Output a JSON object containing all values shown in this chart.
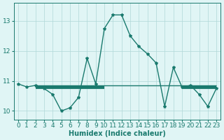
{
  "x": [
    0,
    1,
    2,
    3,
    4,
    5,
    6,
    7,
    8,
    9,
    10,
    11,
    12,
    13,
    14,
    15,
    16,
    17,
    18,
    19,
    20,
    21,
    22,
    23
  ],
  "y": [
    10.9,
    10.8,
    10.85,
    10.75,
    10.55,
    10.0,
    10.1,
    10.45,
    11.75,
    10.9,
    12.75,
    13.2,
    13.2,
    12.5,
    12.15,
    11.9,
    11.6,
    10.15,
    11.45,
    10.8,
    10.85,
    10.55,
    10.15,
    10.75
  ],
  "hline1_y": 10.84,
  "hline1_x1": 2,
  "hline1_x2": 23,
  "hline2_y": 10.78,
  "hline2_x1": 2,
  "hline2_x2": 10,
  "hline3_y": 10.78,
  "hline3_x1": 19,
  "hline3_x2": 23,
  "line_color": "#1a7a6e",
  "bg_color": "#e0f5f5",
  "grid_color": "#b0d8d8",
  "xlabel": "Humidex (Indice chaleur)",
  "xlim": [
    -0.5,
    23.5
  ],
  "ylim": [
    9.7,
    13.6
  ],
  "yticks": [
    10,
    11,
    12,
    13
  ],
  "xticks": [
    0,
    1,
    2,
    3,
    4,
    5,
    6,
    7,
    8,
    9,
    10,
    11,
    12,
    13,
    14,
    15,
    16,
    17,
    18,
    19,
    20,
    21,
    22,
    23
  ],
  "label_fontsize": 7,
  "tick_fontsize": 6.5
}
